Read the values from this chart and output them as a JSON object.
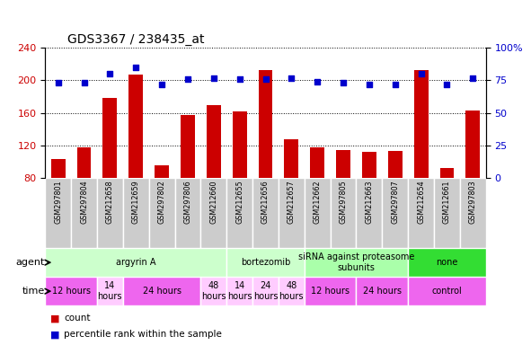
{
  "title": "GDS3367 / 238435_at",
  "samples": [
    "GSM297801",
    "GSM297804",
    "GSM212658",
    "GSM212659",
    "GSM297802",
    "GSM297806",
    "GSM212660",
    "GSM212655",
    "GSM212656",
    "GSM212657",
    "GSM212662",
    "GSM297805",
    "GSM212663",
    "GSM297807",
    "GSM212654",
    "GSM212661",
    "GSM297803"
  ],
  "counts": [
    103,
    118,
    178,
    207,
    96,
    157,
    170,
    162,
    213,
    128,
    118,
    114,
    112,
    113,
    213,
    92,
    163
  ],
  "percentiles": [
    73,
    73,
    80,
    85,
    72,
    76,
    77,
    76,
    76,
    77,
    74,
    73,
    72,
    72,
    80,
    72,
    77
  ],
  "bar_color": "#cc0000",
  "dot_color": "#0000cc",
  "ylim_left": [
    80,
    240
  ],
  "ylim_right": [
    0,
    100
  ],
  "yticks_left": [
    80,
    120,
    160,
    200,
    240
  ],
  "yticks_right": [
    0,
    25,
    50,
    75,
    100
  ],
  "agent_groups": [
    {
      "label": "argyrin A",
      "start": 0,
      "end": 7,
      "color": "#ccffcc"
    },
    {
      "label": "bortezomib",
      "start": 7,
      "end": 10,
      "color": "#ccffcc"
    },
    {
      "label": "siRNA against proteasome\nsubunits",
      "start": 10,
      "end": 14,
      "color": "#aaffaa"
    },
    {
      "label": "none",
      "start": 14,
      "end": 17,
      "color": "#33dd33"
    }
  ],
  "time_groups": [
    {
      "label": "12 hours",
      "start": 0,
      "end": 2,
      "color": "#ee66ee"
    },
    {
      "label": "14\nhours",
      "start": 2,
      "end": 3,
      "color": "#ffccff"
    },
    {
      "label": "24 hours",
      "start": 3,
      "end": 6,
      "color": "#ee66ee"
    },
    {
      "label": "48\nhours",
      "start": 6,
      "end": 7,
      "color": "#ffccff"
    },
    {
      "label": "14\nhours",
      "start": 7,
      "end": 8,
      "color": "#ffccff"
    },
    {
      "label": "24\nhours",
      "start": 8,
      "end": 9,
      "color": "#ffccff"
    },
    {
      "label": "48\nhours",
      "start": 9,
      "end": 10,
      "color": "#ffccff"
    },
    {
      "label": "12 hours",
      "start": 10,
      "end": 12,
      "color": "#ee66ee"
    },
    {
      "label": "24 hours",
      "start": 12,
      "end": 14,
      "color": "#ee66ee"
    },
    {
      "label": "control",
      "start": 14,
      "end": 17,
      "color": "#ee66ee"
    }
  ],
  "sample_bg_color": "#cccccc",
  "legend_items": [
    {
      "label": "count",
      "color": "#cc0000"
    },
    {
      "label": "percentile rank within the sample",
      "color": "#0000cc"
    }
  ]
}
